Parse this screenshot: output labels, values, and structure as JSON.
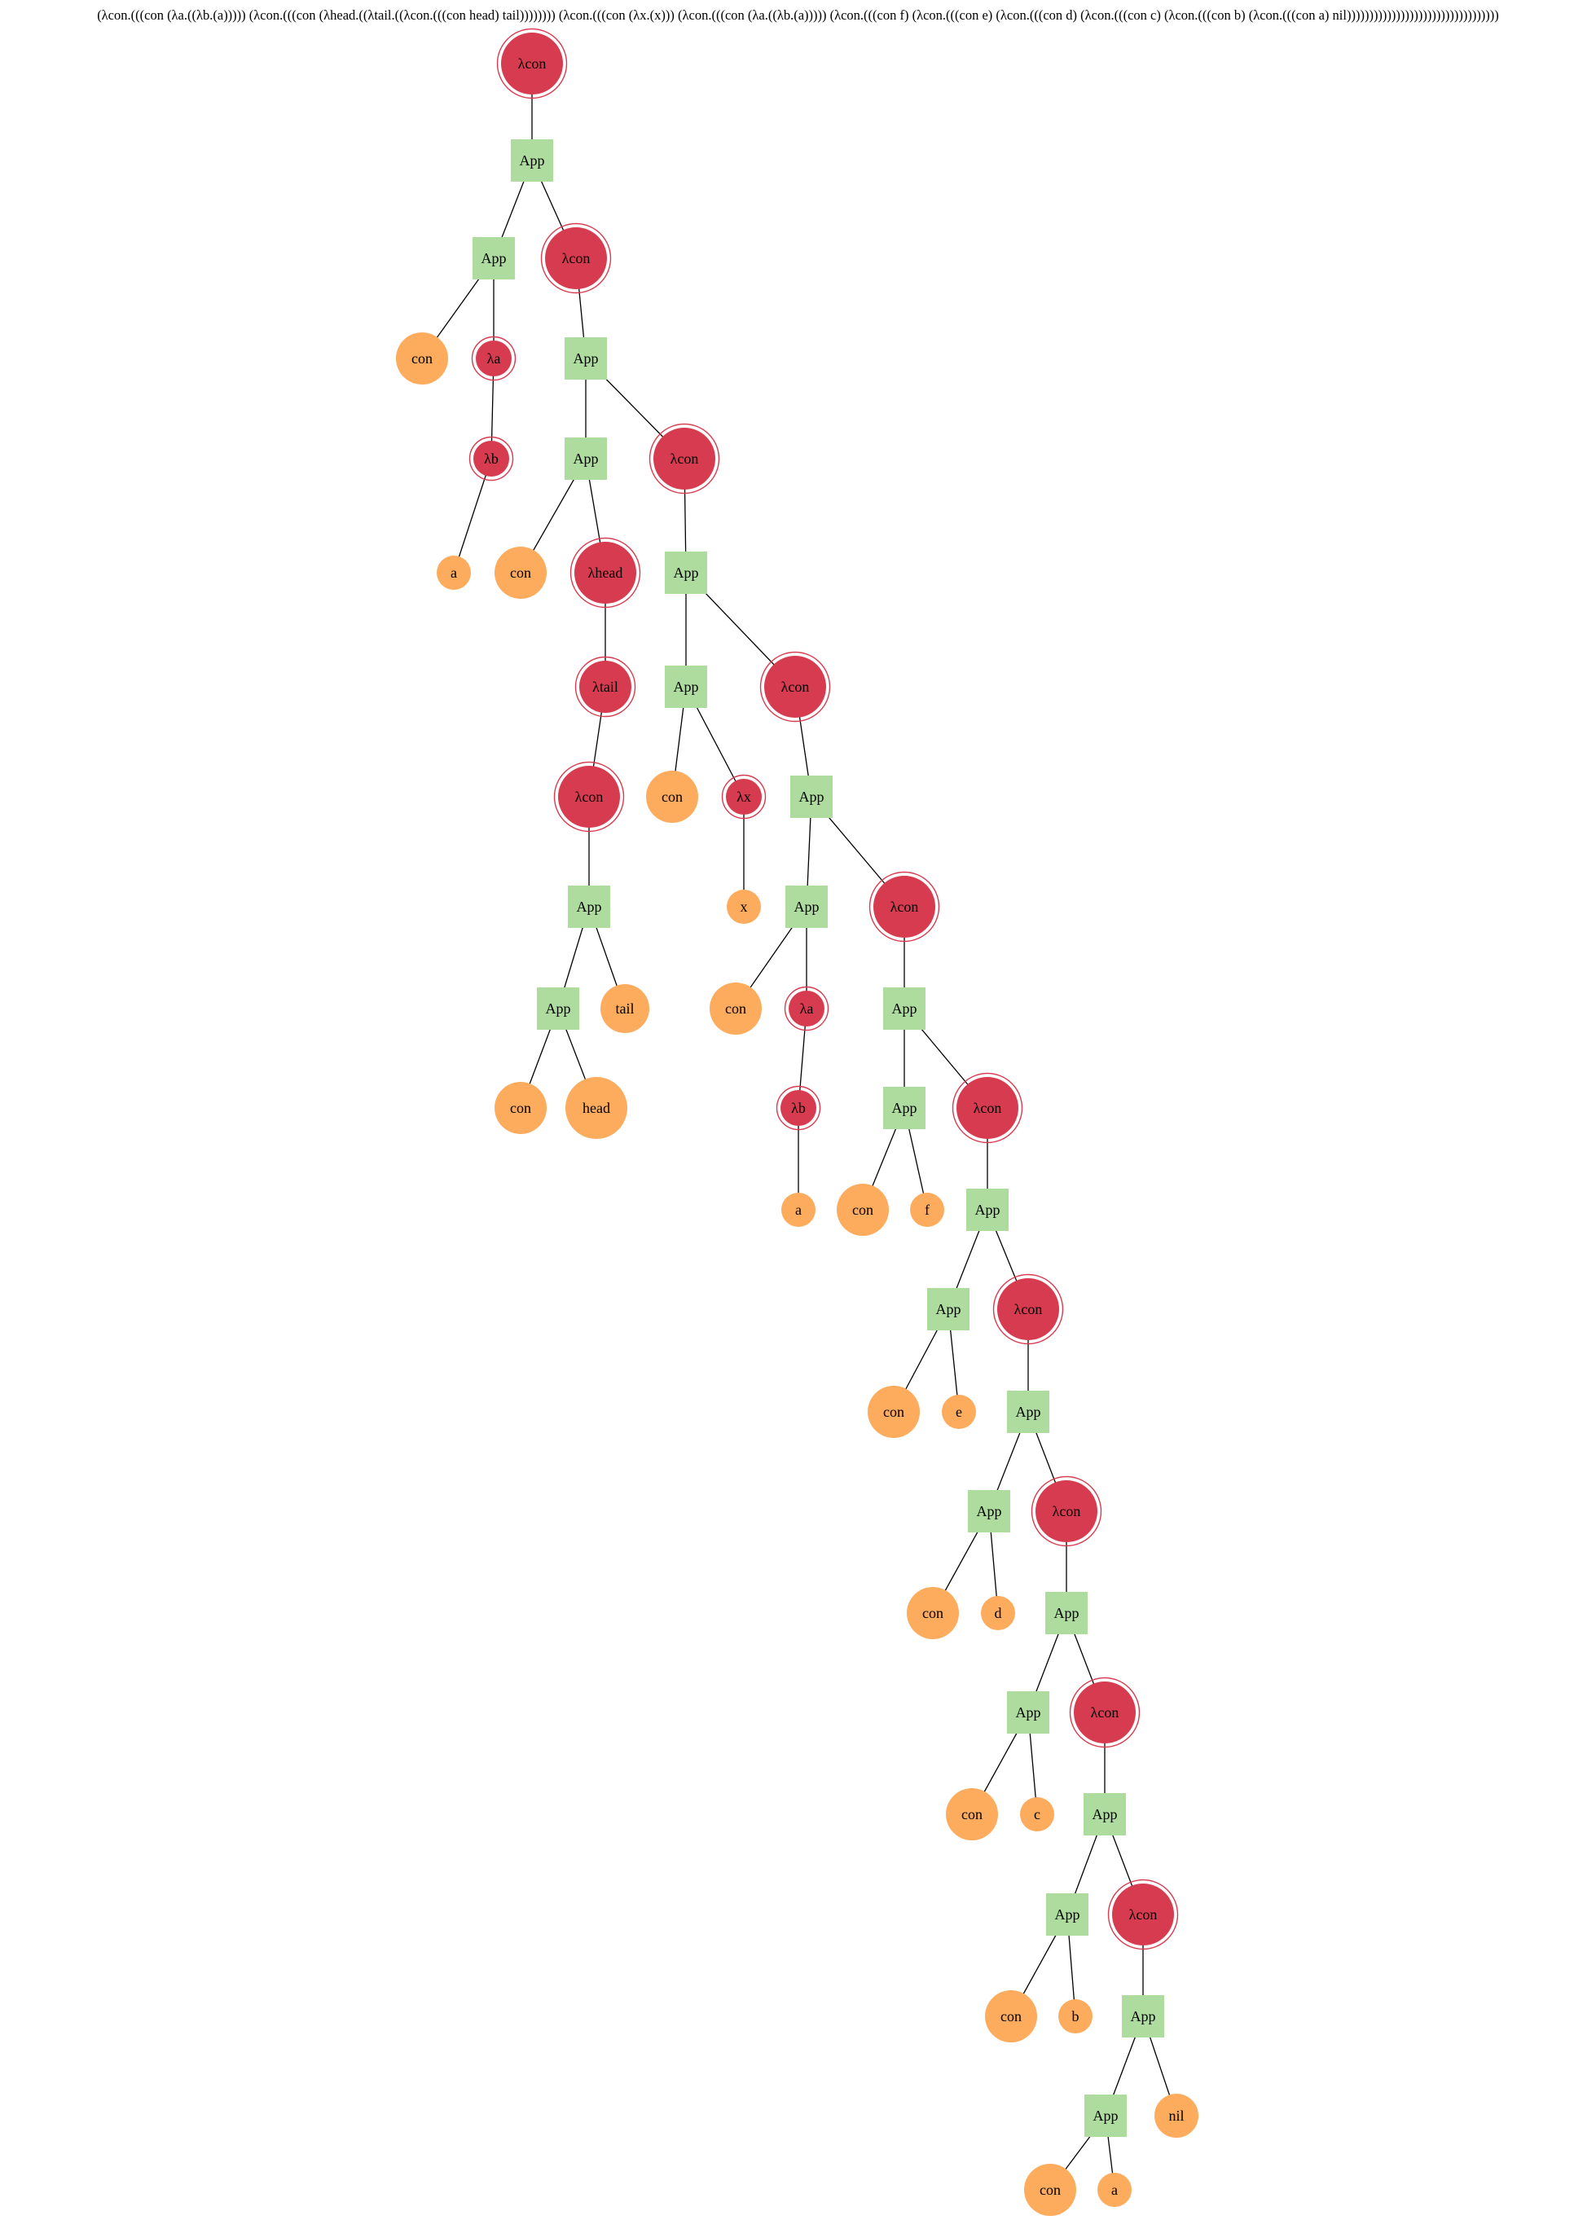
{
  "expression": "(λcon.(((con (λa.((λb.(a))))) (λcon.(((con (λhead.((λtail.((λcon.(((con head) tail)))))))) (λcon.(((con (λx.(x))) (λcon.(((con (λa.((λb.(a))))) (λcon.(((con f) (λcon.(((con e) (λcon.(((con d) (λcon.(((con c) (λcon.(((con b) (λcon.(((con a) nil))))))))))))))))))))))))))))))))))",
  "colors": {
    "lambda": "#d63b4f",
    "variable": "#fdab5d",
    "application": "#addc9e"
  },
  "tree": {
    "t": "lam",
    "label": "λcon",
    "c": [
      {
        "t": "app",
        "label": "App",
        "c": [
          {
            "t": "app",
            "label": "App",
            "c": [
              {
                "t": "var",
                "label": "con"
              },
              {
                "t": "lam",
                "label": "λa",
                "c": [
                  {
                    "t": "lam",
                    "label": "λb",
                    "c": [
                      {
                        "t": "var",
                        "label": "a"
                      }
                    ]
                  }
                ]
              }
            ]
          },
          {
            "t": "lam",
            "label": "λcon",
            "c": [
              {
                "t": "app",
                "label": "App",
                "c": [
                  {
                    "t": "app",
                    "label": "App",
                    "c": [
                      {
                        "t": "var",
                        "label": "con"
                      },
                      {
                        "t": "lam",
                        "label": "λhead",
                        "c": [
                          {
                            "t": "lam",
                            "label": "λtail",
                            "c": [
                              {
                                "t": "lam",
                                "label": "λcon",
                                "c": [
                                  {
                                    "t": "app",
                                    "label": "App",
                                    "c": [
                                      {
                                        "t": "app",
                                        "label": "App",
                                        "c": [
                                          {
                                            "t": "var",
                                            "label": "con"
                                          },
                                          {
                                            "t": "var",
                                            "label": "head"
                                          }
                                        ]
                                      },
                                      {
                                        "t": "var",
                                        "label": "tail"
                                      }
                                    ]
                                  }
                                ]
                              }
                            ]
                          }
                        ]
                      }
                    ]
                  },
                  {
                    "t": "lam",
                    "label": "λcon",
                    "c": [
                      {
                        "t": "app",
                        "label": "App",
                        "c": [
                          {
                            "t": "app",
                            "label": "App",
                            "c": [
                              {
                                "t": "var",
                                "label": "con"
                              },
                              {
                                "t": "lam",
                                "label": "λx",
                                "c": [
                                  {
                                    "t": "var",
                                    "label": "x"
                                  }
                                ]
                              }
                            ]
                          },
                          {
                            "t": "lam",
                            "label": "λcon",
                            "c": [
                              {
                                "t": "app",
                                "label": "App",
                                "c": [
                                  {
                                    "t": "app",
                                    "label": "App",
                                    "c": [
                                      {
                                        "t": "var",
                                        "label": "con"
                                      },
                                      {
                                        "t": "lam",
                                        "label": "λa",
                                        "c": [
                                          {
                                            "t": "lam",
                                            "label": "λb",
                                            "c": [
                                              {
                                                "t": "var",
                                                "label": "a"
                                              }
                                            ]
                                          }
                                        ]
                                      }
                                    ]
                                  },
                                  {
                                    "t": "lam",
                                    "label": "λcon",
                                    "c": [
                                      {
                                        "t": "app",
                                        "label": "App",
                                        "c": [
                                          {
                                            "t": "app",
                                            "label": "App",
                                            "c": [
                                              {
                                                "t": "var",
                                                "label": "con"
                                              },
                                              {
                                                "t": "var",
                                                "label": "f"
                                              }
                                            ]
                                          },
                                          {
                                            "t": "lam",
                                            "label": "λcon",
                                            "c": [
                                              {
                                                "t": "app",
                                                "label": "App",
                                                "c": [
                                                  {
                                                    "t": "app",
                                                    "label": "App",
                                                    "c": [
                                                      {
                                                        "t": "var",
                                                        "label": "con"
                                                      },
                                                      {
                                                        "t": "var",
                                                        "label": "e"
                                                      }
                                                    ]
                                                  },
                                                  {
                                                    "t": "lam",
                                                    "label": "λcon",
                                                    "c": [
                                                      {
                                                        "t": "app",
                                                        "label": "App",
                                                        "c": [
                                                          {
                                                            "t": "app",
                                                            "label": "App",
                                                            "c": [
                                                              {
                                                                "t": "var",
                                                                "label": "con"
                                                              },
                                                              {
                                                                "t": "var",
                                                                "label": "d"
                                                              }
                                                            ]
                                                          },
                                                          {
                                                            "t": "lam",
                                                            "label": "λcon",
                                                            "c": [
                                                              {
                                                                "t": "app",
                                                                "label": "App",
                                                                "c": [
                                                                  {
                                                                    "t": "app",
                                                                    "label": "App",
                                                                    "c": [
                                                                      {
                                                                        "t": "var",
                                                                        "label": "con"
                                                                      },
                                                                      {
                                                                        "t": "var",
                                                                        "label": "c"
                                                                      }
                                                                    ]
                                                                  },
                                                                  {
                                                                    "t": "lam",
                                                                    "label": "λcon",
                                                                    "c": [
                                                                      {
                                                                        "t": "app",
                                                                        "label": "App",
                                                                        "c": [
                                                                          {
                                                                            "t": "app",
                                                                            "label": "App",
                                                                            "c": [
                                                                              {
                                                                                "t": "var",
                                                                                "label": "con"
                                                                              },
                                                                              {
                                                                                "t": "var",
                                                                                "label": "b"
                                                                              }
                                                                            ]
                                                                          },
                                                                          {
                                                                            "t": "lam",
                                                                            "label": "λcon",
                                                                            "c": [
                                                                              {
                                                                                "t": "app",
                                                                                "label": "App",
                                                                                "c": [
                                                                                  {
                                                                                    "t": "app",
                                                                                    "label": "App",
                                                                                    "c": [
                                                                                      {
                                                                                        "t": "var",
                                                                                        "label": "con"
                                                                                      },
                                                                                      {
                                                                                        "t": "var",
                                                                                        "label": "a"
                                                                                      }
                                                                                    ]
                                                                                  },
                                                                                  {
                                                                                    "t": "var",
                                                                                    "label": "nil"
                                                                                  }
                                                                                ]
                                                                              }
                                                                            ]
                                                                          }
                                                                        ]
                                                                      }
                                                                    ]
                                                                  }
                                                                ]
                                                              }
                                                            ]
                                                          }
                                                        ]
                                                      }
                                                    ]
                                                  }
                                                ]
                                              }
                                            ]
                                          }
                                        ]
                                      }
                                    ]
                                  }
                                ]
                              }
                            ]
                          }
                        ]
                      }
                    ]
                  }
                ]
              }
            ]
          }
        ]
      }
    ]
  }
}
